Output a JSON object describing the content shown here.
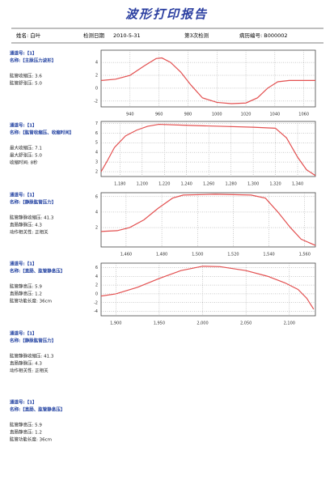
{
  "header": {
    "title": "波形打印报告",
    "name": "姓名: 白叶",
    "date_label": "检测日期",
    "date": "2010-5-31",
    "visit": "第3次检测",
    "record": "病历编号: B000002"
  },
  "panels": [
    {
      "channel": "通道号:【1】",
      "name": "名称:【主脉压力波形】",
      "lines": [
        "肱管收缩压: 3.6",
        "肱管舒张压: 5.0"
      ]
    },
    {
      "channel": "通道号:【1】",
      "name": "名称:【肱管收缩压、收缩时间】",
      "lines": [
        "最大收缩压: 7.1",
        "最大舒张压: 5.0",
        "收缩时间: 8秒"
      ]
    },
    {
      "channel": "通道号:【1】",
      "name": "名称:【静脉肱管压力】",
      "lines": [
        "肱管静脉收缩压: 41.3",
        "直肠静脉压: 4.3",
        "动作相关性: 正相关"
      ]
    },
    {
      "channel": "通道号:【1】",
      "name": "名称:【直肠、肱管静息压】",
      "lines": [
        "肱管静息压: 5.9",
        "直肠静息压: 1.2",
        "肱管功能长度: 36cm"
      ]
    },
    {
      "channel": "通道号:【1】",
      "name": "名称:【静脉肱管压力】",
      "lines": [
        "肱管静脉收缩压: 41.3",
        "直肠静脉压: 4.3",
        "动作相关性: 正相关"
      ]
    },
    {
      "channel": "通道号:【1】",
      "name": "名称:【直肠、肱管静息压】",
      "lines": [
        "肱管静息压: 5.9",
        "直肠静息压: 1.2",
        "肱管功能长度: 36cm"
      ]
    }
  ],
  "chart_data": [
    {
      "type": "line",
      "grid": true,
      "xlim": [
        920,
        1068
      ],
      "ylim": [
        -2.9,
        5.9
      ],
      "xticks": [
        940,
        960,
        980,
        1000,
        1020,
        1040,
        1060
      ],
      "yticks": [
        4,
        2,
        0,
        -2
      ],
      "x": [
        920,
        930,
        940,
        950,
        958,
        962,
        968,
        975,
        982,
        990,
        1000,
        1010,
        1020,
        1028,
        1035,
        1042,
        1050,
        1060,
        1068
      ],
      "series": [
        {
          "color": "#e35050",
          "values": [
            1.2,
            1.4,
            2,
            3.5,
            4.6,
            4.7,
            4,
            2.5,
            0.5,
            -1.5,
            -2.2,
            -2.4,
            -2.3,
            -1.5,
            0,
            1,
            1.2,
            1.2,
            1.2
          ]
        }
      ]
    },
    {
      "type": "line",
      "grid": true,
      "xlim": [
        1163,
        1356
      ],
      "ylim": [
        1.5,
        7.2
      ],
      "xticks": [
        {
          "value": 1180,
          "label": "1,180"
        },
        {
          "value": 1200,
          "label": "1,200"
        },
        {
          "value": 1220,
          "label": "1,220"
        },
        {
          "value": 1240,
          "label": "1,240"
        },
        {
          "value": 1260,
          "label": "1,260"
        },
        {
          "value": 1280,
          "label": "1,280"
        },
        {
          "value": 1300,
          "label": "1,300"
        },
        {
          "value": 1320,
          "label": "1,320"
        },
        {
          "value": 1340,
          "label": "1,340"
        }
      ],
      "yticks": [
        7,
        6,
        5,
        4,
        3,
        2
      ],
      "x": [
        1163,
        1168,
        1175,
        1185,
        1195,
        1205,
        1215,
        1240,
        1270,
        1300,
        1320,
        1330,
        1340,
        1348,
        1356
      ],
      "series": [
        {
          "color": "#e35050",
          "values": [
            2,
            3,
            4.5,
            5.7,
            6.3,
            6.7,
            6.9,
            6.8,
            6.7,
            6.6,
            6.5,
            5.5,
            3.5,
            2.2,
            1.6
          ]
        }
      ]
    },
    {
      "type": "line",
      "grid": true,
      "xlim": [
        1446,
        1566
      ],
      "ylim": [
        -0.5,
        6.5
      ],
      "xticks": [
        {
          "value": 1460,
          "label": "1,460"
        },
        {
          "value": 1480,
          "label": "1,480"
        },
        {
          "value": 1500,
          "label": "1,500"
        },
        {
          "value": 1520,
          "label": "1,520"
        },
        {
          "value": 1540,
          "label": "1,540"
        },
        {
          "value": 1560,
          "label": "1,560"
        }
      ],
      "yticks": [
        6,
        4,
        2
      ],
      "x": [
        1446,
        1455,
        1462,
        1470,
        1478,
        1486,
        1492,
        1510,
        1530,
        1538,
        1545,
        1552,
        1558,
        1566
      ],
      "series": [
        {
          "color": "#e35050",
          "values": [
            1.5,
            1.6,
            2,
            3,
            4.5,
            5.8,
            6.2,
            6.3,
            6.2,
            5.8,
            4,
            2,
            0.5,
            -0.3
          ]
        }
      ]
    },
    {
      "type": "line",
      "grid": true,
      "xlim": [
        1883,
        2130
      ],
      "ylim": [
        -5,
        7
      ],
      "xticks": [
        {
          "value": 1900,
          "label": "1,900"
        },
        {
          "value": 1950,
          "label": "1,950"
        },
        {
          "value": 2000,
          "label": "2,000"
        },
        {
          "value": 2050,
          "label": "2,050"
        },
        {
          "value": 2100,
          "label": "2,100"
        }
      ],
      "yticks": [
        6,
        4,
        2,
        0,
        -2,
        -4
      ],
      "x": [
        1883,
        1900,
        1925,
        1950,
        1975,
        2000,
        2020,
        2050,
        2075,
        2095,
        2110,
        2120,
        2128
      ],
      "series": [
        {
          "color": "#e35050",
          "values": [
            -0.5,
            0,
            1.5,
            3.5,
            5.3,
            6.3,
            6.2,
            5.3,
            4,
            2.5,
            1,
            -1,
            -3.5
          ]
        }
      ]
    }
  ]
}
